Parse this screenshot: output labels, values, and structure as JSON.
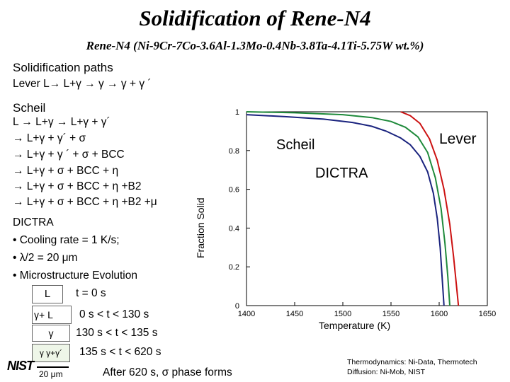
{
  "slide": {
    "title": "Solidification of Rene-N4",
    "subtitle": "Rene-N4 (Ni-9Cr-7Co-3.6Al-1.3Mo-0.4Nb-3.8Ta-4.1Ti-5.75W wt.%)",
    "heading": "Solidification paths",
    "lever_line": "Lever  L→ L+γ → γ → γ + γ ´",
    "scheil_heading": "Scheil",
    "scheil_steps": [
      "L → L+γ → L+γ + γ´",
      "→ L+γ + γ´ + σ",
      "→ L+γ + γ ´ + σ + BCC",
      "→ L+γ + σ + BCC + η",
      "→ L+γ + σ + BCC + η +B2",
      "→ L+γ + σ + BCC + η +B2 +μ"
    ],
    "dictra_heading": "DICTRA",
    "dictra_bullets": [
      "• Cooling rate = 1 K/s;",
      "• λ/2 = 20 μm",
      "• Microstructure Evolution"
    ],
    "evolution": [
      {
        "phase": "L",
        "time": "t = 0 s"
      },
      {
        "phase": "γ+ L",
        "time": "0 s < t < 130 s"
      },
      {
        "phase": "γ",
        "time": "130 s < t < 135 s"
      },
      {
        "phase": "γ γ+γ´",
        "time": "135 s < t < 620 s"
      }
    ],
    "scale_label": "20 μm",
    "final_note": "After 620 s, σ phase forms",
    "logo_text": "NIST",
    "credits": [
      "Thermodynamics: Ni-Data, Thermotech",
      "Diffusion:  Ni-Mob, NIST"
    ]
  },
  "chart_data": {
    "type": "line",
    "xlabel": "Temperature (K)",
    "ylabel": "Fraction Solid",
    "xlim": [
      1400,
      1650
    ],
    "ylim": [
      0,
      1
    ],
    "x_ticks": [
      1400,
      1450,
      1500,
      1550,
      1600,
      1650
    ],
    "y_ticks": [
      0,
      0.2,
      0.4,
      0.6,
      0.8,
      1
    ],
    "annotations": [
      "Scheil",
      "Lever",
      "DICTRA"
    ],
    "series": [
      {
        "name": "Scheil",
        "color": "#1a237e",
        "x": [
          1400,
          1440,
          1480,
          1510,
          1530,
          1545,
          1560,
          1570,
          1580,
          1588,
          1594,
          1598,
          1601,
          1603,
          1605
        ],
        "y": [
          0.985,
          0.975,
          0.962,
          0.945,
          0.925,
          0.9,
          0.865,
          0.83,
          0.77,
          0.69,
          0.58,
          0.45,
          0.3,
          0.15,
          0
        ]
      },
      {
        "name": "DICTRA",
        "color": "#1f8a3b",
        "x": [
          1400,
          1450,
          1500,
          1530,
          1550,
          1565,
          1578,
          1588,
          1596,
          1602,
          1606,
          1609,
          1611
        ],
        "y": [
          1.0,
          0.995,
          0.985,
          0.97,
          0.95,
          0.92,
          0.87,
          0.79,
          0.66,
          0.5,
          0.32,
          0.15,
          0
        ]
      },
      {
        "name": "Lever",
        "color": "#cc1111",
        "x": [
          1560,
          1570,
          1580,
          1590,
          1598,
          1605,
          1611,
          1615,
          1618,
          1620
        ],
        "y": [
          1.0,
          0.98,
          0.94,
          0.86,
          0.75,
          0.6,
          0.42,
          0.25,
          0.1,
          0
        ]
      }
    ]
  }
}
